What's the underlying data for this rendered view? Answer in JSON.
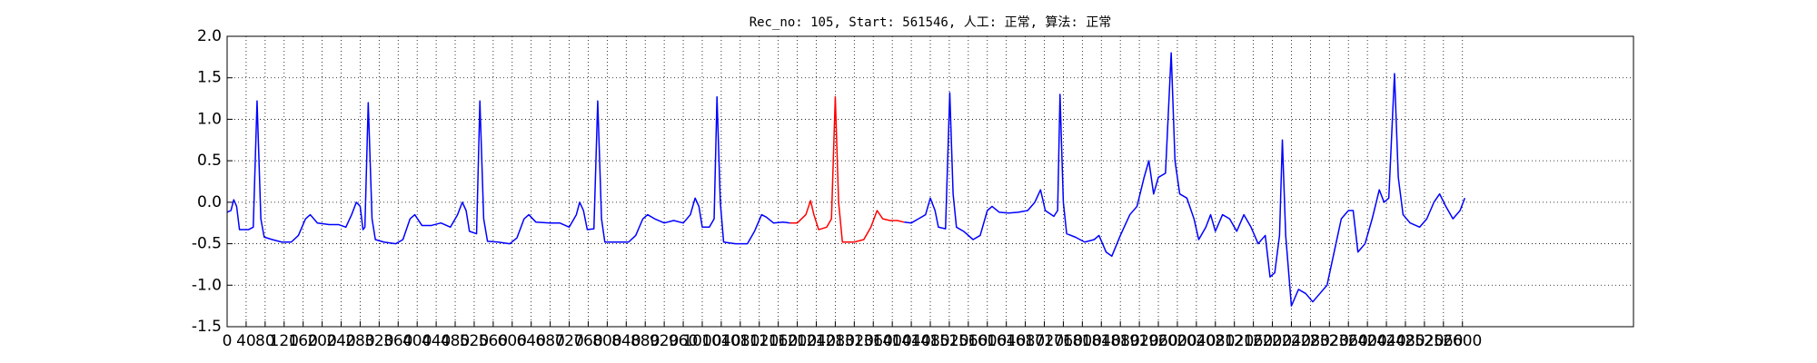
{
  "chart_data": {
    "type": "line",
    "title": "Rec_no: 105, Start: 561546, 人工: 正常, 算法: 正常",
    "xlim": [
      0,
      2960
    ],
    "ylim": [
      -1.5,
      2.0
    ],
    "xticks": [
      0,
      40,
      80,
      120,
      160,
      200,
      240,
      280,
      320,
      360,
      400,
      440,
      480,
      520,
      560,
      600,
      640,
      680,
      720,
      760,
      800,
      840,
      880,
      920,
      960,
      1000,
      1040,
      1080,
      1120,
      1160,
      1200,
      1240,
      1280,
      1320,
      1360,
      1400,
      1440,
      1480,
      1520,
      1560,
      1600,
      1640,
      1680,
      1720,
      1760,
      1800,
      1840,
      1880,
      1920,
      1960,
      2000,
      2040,
      2080,
      2120,
      2160,
      2200,
      2240,
      2280,
      2320,
      2360,
      2400,
      2440,
      2480,
      2520,
      2560,
      2600
    ],
    "yticks": [
      {
        "value": -1.5,
        "label": "-1.5"
      },
      {
        "value": -1.0,
        "label": "-1.0"
      },
      {
        "value": -0.5,
        "label": "-0.5"
      },
      {
        "value": 0,
        "label": "0.0"
      },
      {
        "value": 0.5,
        "label": "0.5"
      },
      {
        "value": 1.0,
        "label": "1.0"
      },
      {
        "value": 1.5,
        "label": "1.5"
      },
      {
        "value": 2.0,
        "label": "2.0"
      }
    ],
    "grid": true,
    "series": [
      {
        "color": "#0000ff",
        "x": [
          0,
          8,
          14,
          20,
          26,
          45,
          55,
          63,
          71,
          78,
          95,
          115,
          135,
          150,
          165,
          175,
          190,
          215,
          235,
          250,
          262,
          272,
          280,
          286,
          290,
          297,
          305,
          312,
          330,
          355,
          370,
          385,
          395,
          410,
          430,
          450,
          470,
          485,
          495,
          503,
          510,
          525,
          532,
          540,
          548,
          570,
          595,
          610,
          625,
          635,
          650,
          680,
          700,
          720,
          735,
          742,
          750,
          758,
          772,
          780,
          788,
          795,
          820,
          845,
          860,
          875,
          885,
          900,
          920,
          940,
          960,
          975,
          985,
          993,
          1000,
          1015,
          1025,
          1031,
          1038,
          1045,
          1070,
          1095,
          1110,
          1125,
          1135,
          1150,
          1170,
          1185,
          1300,
          1425,
          1440,
          1455,
          1470,
          1480,
          1490,
          1497,
          1512,
          1521,
          1528,
          1535,
          1550,
          1570,
          1585,
          1600,
          1610,
          1625,
          1645,
          1665,
          1685,
          1700,
          1712,
          1722,
          1740,
          1748,
          1753,
          1760,
          1767,
          1785,
          1805,
          1825,
          1835,
          1850,
          1862,
          1880,
          1900,
          1915,
          1930,
          1940,
          1950,
          1960,
          1975,
          1987,
          1995,
          2005,
          2020,
          2035,
          2045,
          2060,
          2070,
          2080,
          2095,
          2110,
          2125,
          2140,
          2155,
          2170,
          2185,
          2195,
          2205,
          2215,
          2221,
          2228,
          2240,
          2255,
          2270,
          2285,
          2300,
          2315,
          2330,
          2345,
          2360,
          2370,
          2380,
          2395,
          2410,
          2425,
          2435,
          2445,
          2457,
          2465,
          2475,
          2490,
          2510,
          2525,
          2540,
          2552,
          2565,
          2580,
          2595,
          2605
        ],
        "values": [
          -0.12,
          -0.1,
          0.03,
          -0.05,
          -0.33,
          -0.33,
          -0.3,
          1.22,
          -0.2,
          -0.42,
          -0.45,
          -0.48,
          -0.48,
          -0.4,
          -0.2,
          -0.15,
          -0.25,
          -0.27,
          -0.27,
          -0.3,
          -0.15,
          0.0,
          -0.05,
          -0.33,
          -0.3,
          1.2,
          -0.2,
          -0.45,
          -0.48,
          -0.5,
          -0.45,
          -0.2,
          -0.15,
          -0.28,
          -0.28,
          -0.25,
          -0.3,
          -0.15,
          0.0,
          -0.1,
          -0.35,
          -0.38,
          1.22,
          -0.2,
          -0.47,
          -0.48,
          -0.5,
          -0.43,
          -0.2,
          -0.15,
          -0.24,
          -0.25,
          -0.25,
          -0.3,
          -0.15,
          0.0,
          -0.1,
          -0.33,
          -0.32,
          1.22,
          -0.2,
          -0.48,
          -0.48,
          -0.48,
          -0.4,
          -0.2,
          -0.15,
          -0.2,
          -0.25,
          -0.22,
          -0.25,
          -0.15,
          0.05,
          -0.05,
          -0.3,
          -0.3,
          -0.2,
          1.27,
          0.0,
          -0.48,
          -0.5,
          -0.5,
          -0.35,
          -0.15,
          -0.18,
          -0.25,
          -0.24,
          -0.25,
          null,
          -0.24,
          -0.25,
          -0.2,
          -0.15,
          0.05,
          -0.1,
          -0.3,
          -0.32,
          1.32,
          0.1,
          -0.3,
          -0.35,
          -0.45,
          -0.4,
          -0.1,
          -0.05,
          -0.12,
          -0.13,
          -0.12,
          -0.1,
          0.0,
          0.15,
          -0.1,
          -0.17,
          -0.1,
          1.3,
          0.0,
          -0.38,
          -0.42,
          -0.48,
          -0.45,
          -0.4,
          -0.6,
          -0.65,
          -0.4,
          -0.15,
          -0.05,
          0.3,
          0.5,
          0.1,
          0.3,
          0.35,
          1.8,
          0.5,
          0.1,
          0.05,
          -0.2,
          -0.45,
          -0.3,
          -0.15,
          -0.35,
          -0.15,
          -0.2,
          -0.35,
          -0.15,
          -0.3,
          -0.5,
          -0.4,
          -0.9,
          -0.85,
          -0.4,
          0.75,
          -0.4,
          -1.25,
          -1.05,
          -1.1,
          -1.2,
          -1.1,
          -1.0,
          -0.6,
          -0.2,
          -0.1,
          -0.1,
          -0.6,
          -0.5,
          -0.2,
          0.15,
          0.0,
          0.05,
          1.55,
          0.3,
          -0.15,
          -0.25,
          -0.3,
          -0.2,
          0.0,
          0.1,
          -0.05,
          -0.2,
          -0.1,
          0.05
        ]
      },
      {
        "color": "#ff0000",
        "x": [
          1185,
          1200,
          1218,
          1228,
          1235,
          1245,
          1262,
          1272,
          1280,
          1287,
          1295,
          1320,
          1340,
          1355,
          1368,
          1380,
          1395,
          1410,
          1425
        ],
        "values": [
          -0.25,
          -0.25,
          -0.15,
          0.02,
          -0.15,
          -0.33,
          -0.3,
          -0.2,
          1.27,
          0.0,
          -0.48,
          -0.48,
          -0.45,
          -0.3,
          -0.1,
          -0.2,
          -0.22,
          -0.22,
          -0.24
        ]
      }
    ]
  }
}
